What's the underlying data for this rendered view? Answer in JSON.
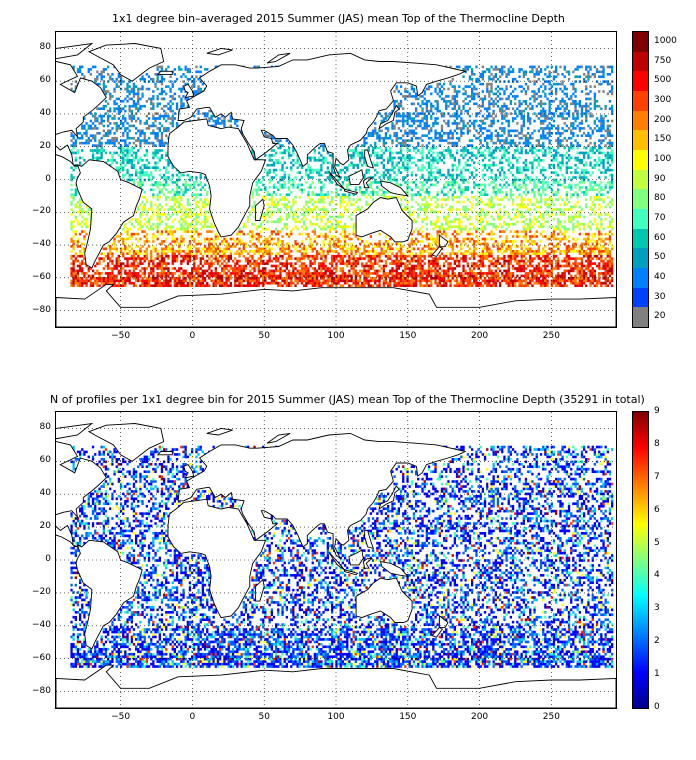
{
  "panel1": {
    "title": "1x1 degree bin–averaged 2015 Summer (JAS) mean Top of the Thermocline Depth",
    "yticks": [
      "80",
      "60",
      "40",
      "20",
      "0",
      "−20",
      "−40",
      "−60",
      "−80"
    ],
    "xticks": [
      "−50",
      "0",
      "50",
      "100",
      "150",
      "200",
      "250"
    ],
    "colorbar": {
      "labels": [
        "1000",
        "750",
        "500",
        "300",
        "200",
        "150",
        "100",
        "90",
        "80",
        "70",
        "60",
        "50",
        "40",
        "30",
        "20"
      ],
      "colors": [
        "#7f0000",
        "#bf0000",
        "#ff0000",
        "#ff4000",
        "#ff8000",
        "#ffbf00",
        "#ffff00",
        "#bfff40",
        "#80ff80",
        "#40ffbf",
        "#00c8b0",
        "#00a0c0",
        "#0080ff",
        "#0040ff",
        "#808080"
      ]
    }
  },
  "panel2": {
    "title": "N of profiles per 1x1 degree bin for 2015 Summer (JAS) mean Top of the Thermocline Depth  (35291 in total)",
    "yticks": [
      "80",
      "60",
      "40",
      "20",
      "0",
      "−20",
      "−40",
      "−60",
      "−80"
    ],
    "xticks": [
      "−50",
      "0",
      "50",
      "100",
      "150",
      "200",
      "250"
    ],
    "colorbar": {
      "labels": [
        "9",
        "8",
        "7",
        "6",
        "5",
        "4",
        "3",
        "2",
        "1",
        "0"
      ]
    }
  }
}
